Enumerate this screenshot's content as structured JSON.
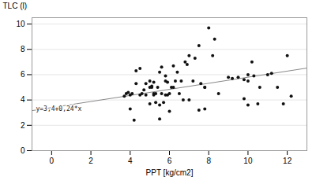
{
  "chart_data": {
    "type": "scatter",
    "x": [
      3.8,
      3.9,
      4.0,
      4.1,
      4.2,
      4.3,
      4.0,
      4.5,
      4.6,
      4.8,
      4.8,
      5.0,
      5.0,
      5.1,
      5.2,
      5.2,
      5.3,
      5.3,
      5.4,
      5.5,
      5.5,
      5.6,
      5.6,
      5.7,
      5.8,
      5.8,
      5.9,
      5.9,
      6.0,
      6.1,
      6.2,
      6.2,
      6.3,
      6.5,
      6.6,
      6.7,
      6.8,
      7.0,
      7.0,
      7.2,
      7.3,
      7.5,
      7.5,
      7.8,
      7.8,
      8.0,
      8.2,
      8.5,
      9.0,
      9.5,
      9.8,
      9.8,
      10.0,
      10.0,
      10.0,
      10.2,
      10.5,
      10.6,
      11.0,
      11.5,
      11.8,
      12.0,
      12.2,
      4.5,
      4.3,
      3.7,
      5.5,
      6.0,
      5.2,
      5.0,
      7.8,
      4.7,
      5.1,
      5.8,
      6.4,
      6.9,
      7.6,
      8.3,
      9.2,
      10.3,
      11.2
    ],
    "values": [
      4.5,
      4.6,
      4.4,
      4.5,
      2.4,
      5.3,
      3.3,
      4.4,
      4.5,
      5.3,
      4.4,
      3.7,
      5.5,
      5.0,
      5.4,
      4.4,
      3.8,
      4.5,
      5.0,
      3.6,
      6.2,
      6.6,
      4.5,
      3.8,
      5.5,
      4.4,
      5.4,
      4.4,
      4.5,
      5.0,
      5.0,
      6.7,
      5.5,
      4.5,
      5.5,
      4.0,
      7.0,
      7.5,
      4.0,
      5.5,
      7.3,
      3.2,
      8.3,
      3.3,
      5.0,
      9.7,
      7.5,
      4.5,
      5.8,
      5.8,
      5.6,
      4.1,
      6.0,
      5.5,
      3.6,
      7.0,
      3.7,
      5.0,
      6.0,
      5.0,
      3.7,
      7.5,
      4.3,
      6.5,
      6.3,
      4.3,
      2.5,
      3.1,
      4.5,
      5.0,
      5.0,
      4.8,
      5.1,
      5.9,
      6.2,
      6.8,
      5.3,
      8.8,
      5.7,
      5.9,
      6.1
    ],
    "color": "#111111",
    "regression_line": {
      "x": [
        -1.0,
        13.0
      ],
      "values": [
        3.16,
        6.52
      ],
      "color": "#888888"
    },
    "annotations": [
      {
        "text": "y=3,4+0,24*x",
        "x": -0.8,
        "y": 3.15
      }
    ],
    "xlabel": "PPT [kg/cm2]",
    "ylabel": "TLC (l)",
    "xlim": [
      -1.0,
      13.0
    ],
    "ylim": [
      0,
      10.5
    ],
    "xticks": [
      0,
      2,
      4,
      6,
      8,
      10,
      12
    ],
    "yticks": [
      0,
      2,
      4,
      6,
      8,
      10
    ],
    "grid": "y"
  }
}
